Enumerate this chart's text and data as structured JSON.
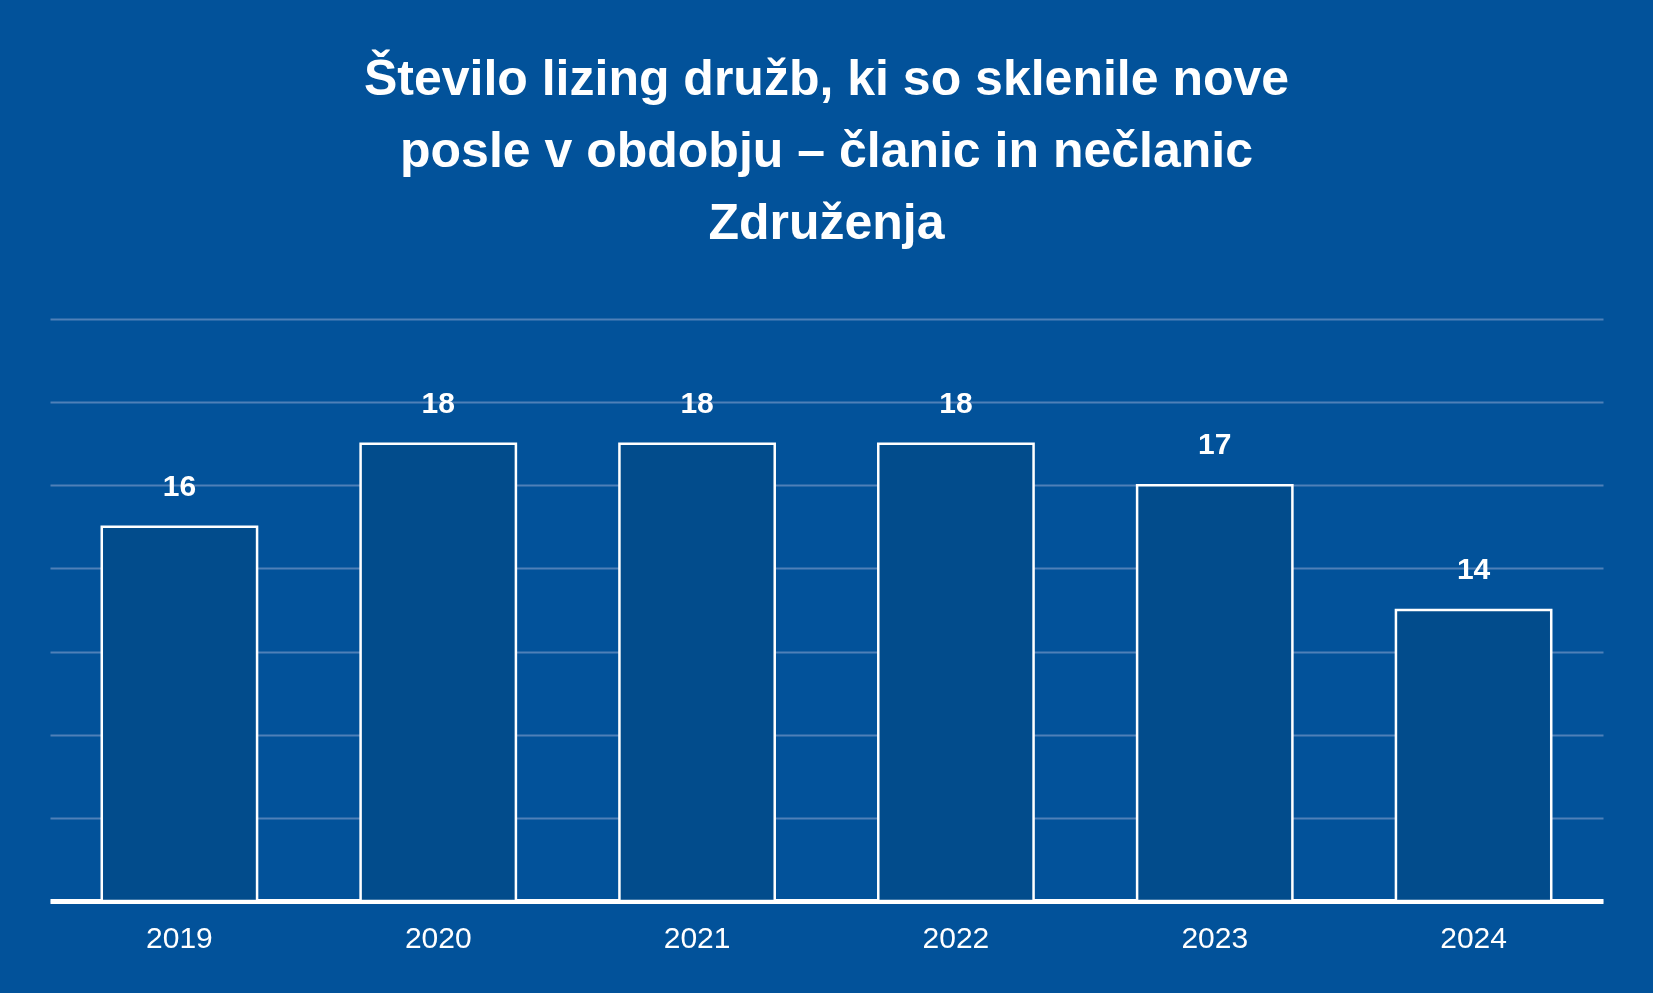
{
  "chart_data": {
    "type": "bar",
    "title": [
      "Število lizing družb, ki so sklenile nove",
      "posle v obdobju – članic in nečlanic",
      "Združenja"
    ],
    "categories": [
      "2019",
      "2020",
      "2021",
      "2022",
      "2023",
      "2024"
    ],
    "values": [
      16,
      18,
      18,
      18,
      17,
      14
    ],
    "color": "#024c8c",
    "ylim": [
      7,
      21
    ],
    "yticks": [
      {
        "value": 7,
        "label": null
      },
      {
        "value": 9,
        "label": null
      },
      {
        "value": 11,
        "label": null
      },
      {
        "value": 13,
        "label": null
      },
      {
        "value": 15,
        "label": null
      },
      {
        "value": 17,
        "label": null
      },
      {
        "value": 19,
        "label": null
      },
      {
        "value": 21,
        "label": null
      }
    ],
    "grid": "y",
    "data_labels": true,
    "tick_labels": "x"
  }
}
